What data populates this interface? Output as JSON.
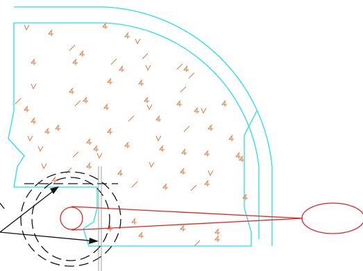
{
  "colors": {
    "outline": "#22e0e8",
    "hatch": "#e0783c",
    "highlight": "#e8201f",
    "leader": "#111111"
  },
  "labels": {
    "hatch_glyph": "4",
    "hatch_v": "V"
  }
}
